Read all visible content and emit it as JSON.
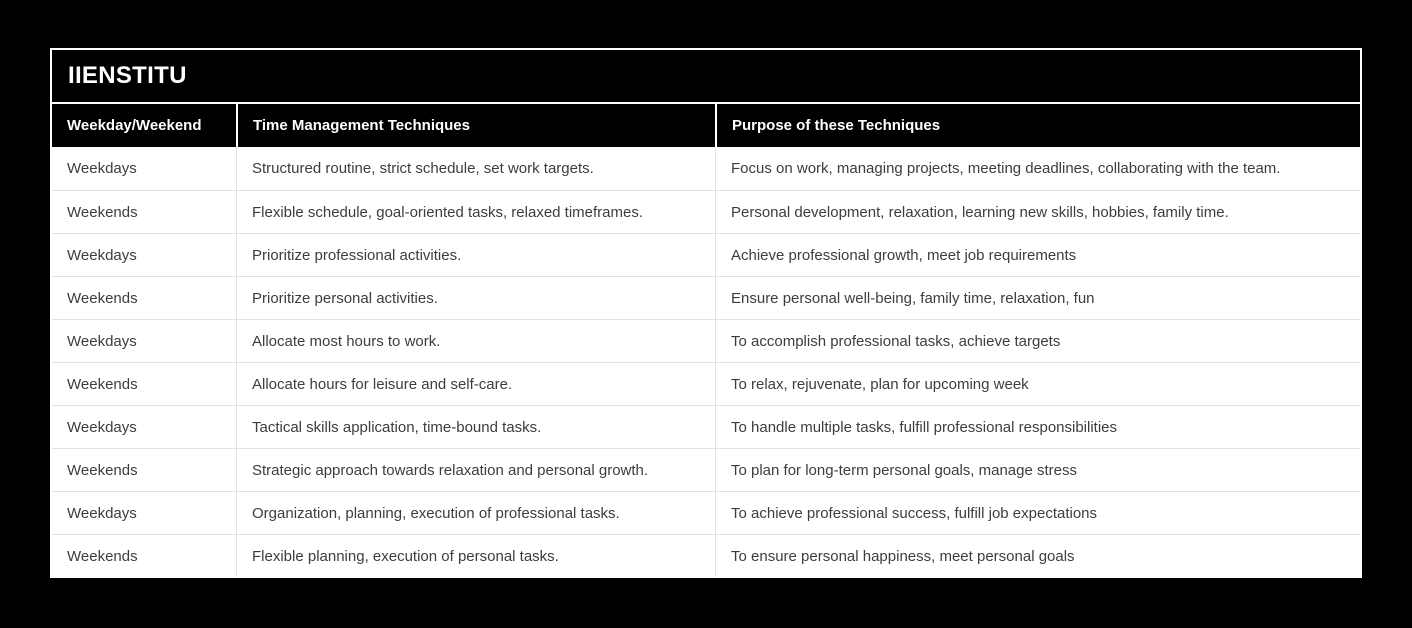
{
  "page": {
    "background_color": "#000000",
    "accent_text_color": "#ffffff",
    "body_text_color": "#3d3d3d",
    "separator_color": "#e2e2e2"
  },
  "table": {
    "brand": "IIENSTITU",
    "columns": [
      "Weekday/Weekend",
      "Time Management Techniques",
      "Purpose of these Techniques"
    ],
    "rows": [
      {
        "day": "Weekdays",
        "technique": "Structured routine, strict schedule, set work targets.",
        "purpose": "Focus on work, managing projects, meeting deadlines, collaborating with the team."
      },
      {
        "day": "Weekends",
        "technique": "Flexible schedule, goal-oriented tasks, relaxed timeframes.",
        "purpose": "Personal development, relaxation, learning new skills, hobbies, family time."
      },
      {
        "day": "Weekdays",
        "technique": "Prioritize professional activities.",
        "purpose": "Achieve professional growth, meet job requirements"
      },
      {
        "day": "Weekends",
        "technique": "Prioritize personal activities.",
        "purpose": "Ensure personal well-being, family time, relaxation, fun"
      },
      {
        "day": "Weekdays",
        "technique": "Allocate most hours to work.",
        "purpose": "To accomplish professional tasks, achieve targets"
      },
      {
        "day": "Weekends",
        "technique": "Allocate hours for leisure and self-care.",
        "purpose": "To relax, rejuvenate, plan for upcoming week"
      },
      {
        "day": "Weekdays",
        "technique": "Tactical skills application, time-bound tasks.",
        "purpose": "To handle multiple tasks, fulfill professional responsibilities"
      },
      {
        "day": "Weekends",
        "technique": "Strategic approach towards relaxation and personal growth.",
        "purpose": "To plan for long-term personal goals, manage stress"
      },
      {
        "day": "Weekdays",
        "technique": "Organization, planning, execution of professional tasks.",
        "purpose": "To achieve professional success, fulfill job expectations"
      },
      {
        "day": "Weekends",
        "technique": "Flexible planning, execution of personal tasks.",
        "purpose": "To ensure personal happiness, meet personal goals"
      }
    ]
  },
  "chart_data": {
    "type": "table",
    "title": "IIENSTITU",
    "columns": [
      "Weekday/Weekend",
      "Time Management Techniques",
      "Purpose of these Techniques"
    ],
    "rows": [
      [
        "Weekdays",
        "Structured routine, strict schedule, set work targets.",
        "Focus on work, managing projects, meeting deadlines, collaborating with the team."
      ],
      [
        "Weekends",
        "Flexible schedule, goal-oriented tasks, relaxed timeframes.",
        "Personal development, relaxation, learning new skills, hobbies, family time."
      ],
      [
        "Weekdays",
        "Prioritize professional activities.",
        "Achieve professional growth, meet job requirements"
      ],
      [
        "Weekends",
        "Prioritize personal activities.",
        "Ensure personal well-being, family time, relaxation, fun"
      ],
      [
        "Weekdays",
        "Allocate most hours to work.",
        "To accomplish professional tasks, achieve targets"
      ],
      [
        "Weekends",
        "Allocate hours for leisure and self-care.",
        "To relax, rejuvenate, plan for upcoming week"
      ],
      [
        "Weekdays",
        "Tactical skills application, time-bound tasks.",
        "To handle multiple tasks, fulfill professional responsibilities"
      ],
      [
        "Weekends",
        "Strategic approach towards relaxation and personal growth.",
        "To plan for long-term personal goals, manage stress"
      ],
      [
        "Weekdays",
        "Organization, planning, execution of professional tasks.",
        "To achieve professional success, fulfill job expectations"
      ],
      [
        "Weekends",
        "Flexible planning, execution of personal tasks.",
        "To ensure personal happiness, meet personal goals"
      ]
    ],
    "layout": {
      "header_background": "#000000",
      "header_text": "#ffffff",
      "row_background": "#ffffff",
      "grid": true,
      "legend": "none"
    }
  }
}
